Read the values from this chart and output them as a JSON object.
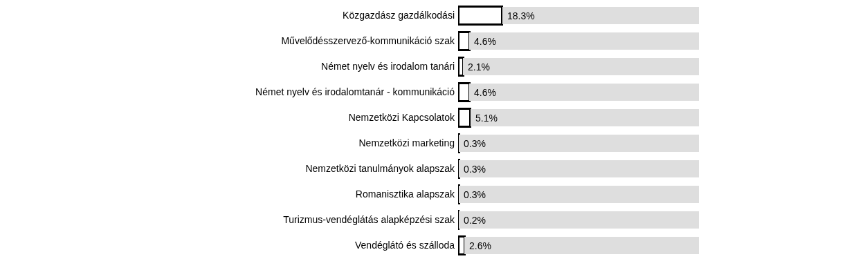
{
  "chart_data": {
    "type": "bar",
    "orientation": "horizontal",
    "stacked": true,
    "categories": [
      "Közgazdász gazdálkodási",
      "Művelődésszervező-kommunikáció szak",
      "Német nyelv és irodalom tanári",
      "Német nyelv és irodalomtanár - kommunikáció",
      "Nemzetközi Kapcsolatok",
      "Nemzetközi marketing",
      "Nemzetközi tanulmányok alapszak",
      "Romanisztika alapszak",
      "Turizmus-vendéglátás alapképzési szak",
      "Vendéglátó és szálloda"
    ],
    "series": [
      {
        "color": "#ffffff",
        "values": [
          18.3,
          4.6,
          2.1,
          4.6,
          5.1,
          0.3,
          0.3,
          0.3,
          0.2,
          2.6
        ],
        "value_labels": [
          "18.3%",
          "4.6%",
          "2.1%",
          "4.6%",
          "5.1%",
          "0.3%",
          "0.3%",
          "0.3%",
          "0.2%",
          "2.6%"
        ]
      },
      {
        "color": "#dedede",
        "values": [
          81.7,
          95.4,
          97.9,
          95.4,
          94.9,
          99.7,
          99.7,
          99.7,
          99.8,
          97.4
        ]
      }
    ],
    "xlim": [
      0,
      100
    ],
    "tick_labels": "y"
  }
}
